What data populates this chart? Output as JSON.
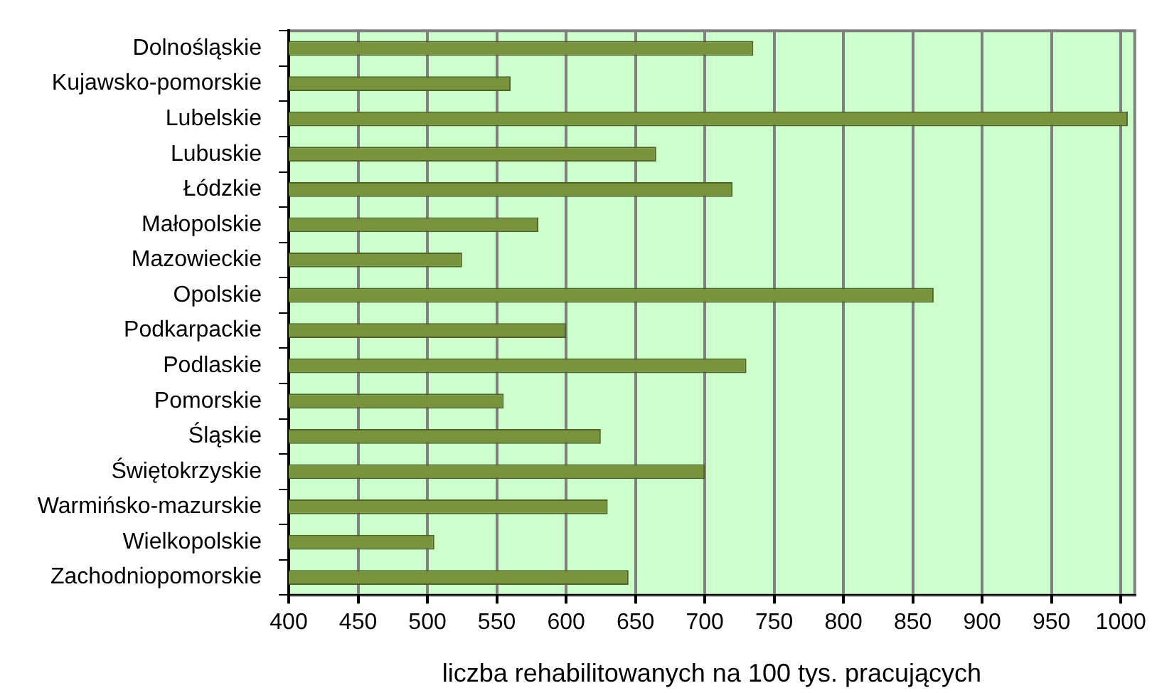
{
  "chart_data": {
    "type": "bar",
    "orientation": "horizontal",
    "categories": [
      "Dolnośląskie",
      "Kujawsko-pomorskie",
      "Lubelskie",
      "Lubuskie",
      "Łódzkie",
      "Małopolskie",
      "Mazowieckie",
      "Opolskie",
      "Podkarpackie",
      "Podlaskie",
      "Pomorskie",
      "Śląskie",
      "Świętokrzyskie",
      "Warmińsko-mazurskie",
      "Wielkopolskie",
      "Zachodniopomorskie"
    ],
    "values": [
      735,
      560,
      1005,
      665,
      720,
      580,
      525,
      865,
      600,
      730,
      555,
      625,
      700,
      630,
      505,
      645
    ],
    "color": "#77933c",
    "xlim": [
      400,
      1010
    ],
    "xticks": [
      400,
      450,
      500,
      550,
      600,
      650,
      700,
      750,
      800,
      850,
      900,
      950,
      1000
    ],
    "xlabel": "liczba rehabilitowanych na 100 tys. pracujących",
    "grid": "x"
  }
}
